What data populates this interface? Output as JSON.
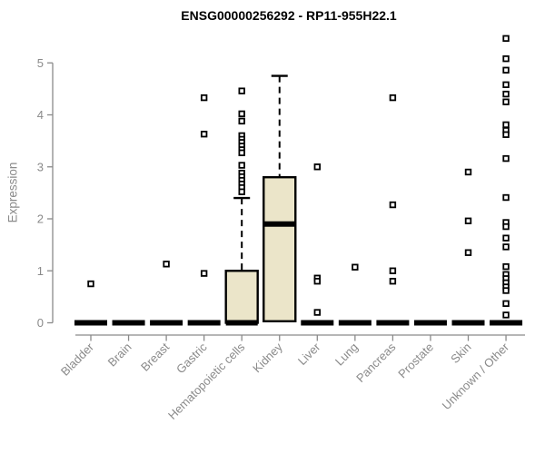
{
  "chart_data": {
    "type": "box",
    "title": "ENSG00000256292 - RP11-955H22.1",
    "ylabel": "Expression",
    "xlabel": "",
    "ylim": [
      0,
      5.5
    ],
    "yticks": [
      0,
      1,
      2,
      3,
      4,
      5
    ],
    "grid": false,
    "legend": "none",
    "axis_color": "#8a8a8a",
    "box_fill": "#EBE5C9",
    "box_stroke": "#000000",
    "outlier_marker": "open-square",
    "categories": [
      "Bladder",
      "Brain",
      "Breast",
      "Gastric",
      "Hematopoietic cells",
      "Kidney",
      "Liver",
      "Lung",
      "Pancreas",
      "Prostate",
      "Skin",
      "Unknown / Other"
    ],
    "series": [
      {
        "category": "Bladder",
        "median": 0,
        "box": null,
        "outliers": [
          0.75
        ]
      },
      {
        "category": "Brain",
        "median": 0,
        "box": null,
        "outliers": []
      },
      {
        "category": "Breast",
        "median": 0,
        "box": null,
        "outliers": [
          1.13
        ]
      },
      {
        "category": "Gastric",
        "median": 0,
        "box": null,
        "outliers": [
          4.33,
          3.63,
          0.95
        ]
      },
      {
        "category": "Hematopoietic cells",
        "median": 0,
        "box": {
          "q1": 0,
          "median": 0,
          "q3": 1.0,
          "whisker_low": 0,
          "whisker_high": 2.4
        },
        "outliers": [
          4.46,
          4.02,
          3.88,
          3.6,
          3.53,
          3.47,
          3.4,
          3.33,
          3.27,
          3.03,
          2.88,
          2.81,
          2.74,
          2.67,
          2.6,
          2.52
        ]
      },
      {
        "category": "Kidney",
        "median": 1.9,
        "box": {
          "q1": 0.03,
          "median": 1.9,
          "q3": 2.8,
          "whisker_low": 0.03,
          "whisker_high": 4.75
        },
        "outliers": []
      },
      {
        "category": "Liver",
        "median": 0,
        "box": null,
        "outliers": [
          3.0,
          0.86,
          0.8,
          0.2
        ]
      },
      {
        "category": "Lung",
        "median": 0,
        "box": null,
        "outliers": [
          1.07
        ]
      },
      {
        "category": "Pancreas",
        "median": 0,
        "box": null,
        "outliers": [
          4.33,
          2.27,
          1.0,
          0.8
        ]
      },
      {
        "category": "Prostate",
        "median": 0,
        "box": null,
        "outliers": []
      },
      {
        "category": "Skin",
        "median": 0,
        "box": null,
        "outliers": [
          2.9,
          1.96,
          1.35
        ]
      },
      {
        "category": "Unknown / Other",
        "median": 0,
        "box": null,
        "outliers": [
          5.47,
          5.08,
          4.86,
          4.58,
          4.4,
          4.25,
          3.81,
          3.7,
          3.62,
          3.16,
          2.41,
          1.93,
          1.85,
          1.63,
          1.46,
          1.08,
          0.93,
          0.85,
          0.77,
          0.69,
          0.62,
          0.37,
          0.15
        ]
      }
    ]
  }
}
